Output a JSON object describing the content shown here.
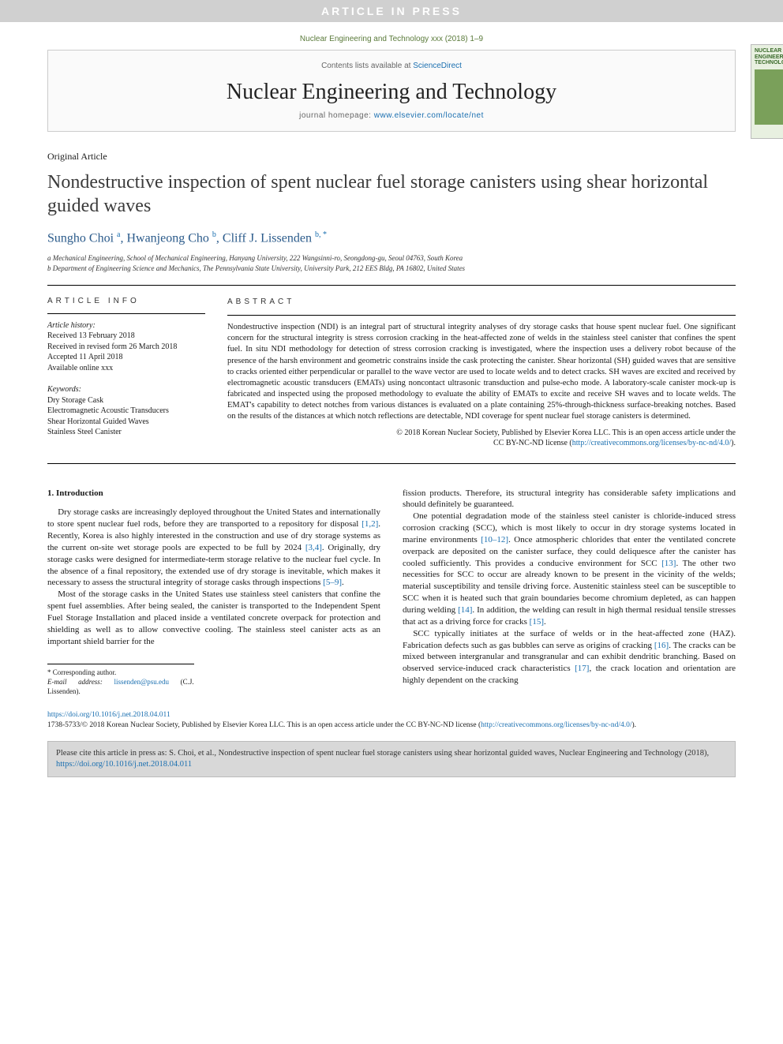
{
  "banner": "ARTICLE IN PRESS",
  "citation_top": "Nuclear Engineering and Technology xxx (2018) 1–9",
  "masthead": {
    "contents_prefix": "Contents lists available at ",
    "contents_link": "ScienceDirect",
    "journal": "Nuclear Engineering and Technology",
    "homepage_prefix": "journal homepage: ",
    "homepage_link": "www.elsevier.com/locate/net",
    "cover_title": "NUCLEAR ENGINEERING AND TECHNOLOGY"
  },
  "article_type": "Original Article",
  "title": "Nondestructive inspection of spent nuclear fuel storage canisters using shear horizontal guided waves",
  "authors_html": "Sungho Choi <sup>a</sup>, Hwanjeong Cho <sup>b</sup>, Cliff J. Lissenden <sup>b, *</sup>",
  "affiliations": {
    "a": "a Mechanical Engineering, School of Mechanical Engineering, Hanyang University, 222 Wangsinni-ro, Seongdong-gu, Seoul 04763, South Korea",
    "b": "b Department of Engineering Science and Mechanics, The Pennsylvania State University, University Park, 212 EES Bldg, PA 16802, United States"
  },
  "info_heading": "ARTICLE INFO",
  "history": {
    "label": "Article history:",
    "received": "Received 13 February 2018",
    "revised": "Received in revised form 26 March 2018",
    "accepted": "Accepted 11 April 2018",
    "online": "Available online xxx"
  },
  "keywords": {
    "label": "Keywords:",
    "items": [
      "Dry Storage Cask",
      "Electromagnetic Acoustic Transducers",
      "Shear Horizontal Guided Waves",
      "Stainless Steel Canister"
    ]
  },
  "abs_heading": "ABSTRACT",
  "abstract": "Nondestructive inspection (NDI) is an integral part of structural integrity analyses of dry storage casks that house spent nuclear fuel. One significant concern for the structural integrity is stress corrosion cracking in the heat-affected zone of welds in the stainless steel canister that confines the spent fuel. In situ NDI methodology for detection of stress corrosion cracking is investigated, where the inspection uses a delivery robot because of the presence of the harsh environment and geometric constrains inside the cask protecting the canister. Shear horizontal (SH) guided waves that are sensitive to cracks oriented either perpendicular or parallel to the wave vector are used to locate welds and to detect cracks. SH waves are excited and received by electromagnetic acoustic transducers (EMATs) using noncontact ultrasonic transduction and pulse-echo mode. A laboratory-scale canister mock-up is fabricated and inspected using the proposed methodology to evaluate the ability of EMATs to excite and receive SH waves and to locate welds. The EMAT's capability to detect notches from various distances is evaluated on a plate containing 25%-through-thickness surface-breaking notches. Based on the results of the distances at which notch reflections are detectable, NDI coverage for spent nuclear fuel storage canisters is determined.",
  "copyright": {
    "line1": "© 2018 Korean Nuclear Society, Published by Elsevier Korea LLC. This is an open access article under the",
    "line2_prefix": "CC BY-NC-ND license (",
    "line2_link": "http://creativecommons.org/licenses/by-nc-nd/4.0/",
    "line2_suffix": ")."
  },
  "section1": {
    "heading": "1. Introduction",
    "p1a": "Dry storage casks are increasingly deployed throughout the United States and internationally to store spent nuclear fuel rods, before they are transported to a repository for disposal ",
    "p1_ref1": "[1,2]",
    "p1b": ". Recently, Korea is also highly interested in the construction and use of dry storage systems as the current on-site wet storage pools are expected to be full by 2024 ",
    "p1_ref2": "[3,4]",
    "p1c": ". Originally, dry storage casks were designed for intermediate-term storage relative to the nuclear fuel cycle. In the absence of a final repository, the extended use of dry storage is inevitable, which makes it necessary to assess the structural integrity of storage casks through inspections ",
    "p1_ref3": "[5–9]",
    "p1d": ".",
    "p2": "Most of the storage casks in the United States use stainless steel canisters that confine the spent fuel assemblies. After being sealed, the canister is transported to the Independent Spent Fuel Storage Installation and placed inside a ventilated concrete overpack for protection and shielding as well as to allow convective cooling. The stainless steel canister acts as an important shield barrier for the",
    "p3": "fission products. Therefore, its structural integrity has considerable safety implications and should definitely be guaranteed.",
    "p4a": "One potential degradation mode of the stainless steel canister is chloride-induced stress corrosion cracking (SCC), which is most likely to occur in dry storage systems located in marine environments ",
    "p4_ref1": "[10–12]",
    "p4b": ". Once atmospheric chlorides that enter the ventilated concrete overpack are deposited on the canister surface, they could deliquesce after the canister has cooled sufficiently. This provides a conducive environment for SCC ",
    "p4_ref2": "[13]",
    "p4c": ". The other two necessities for SCC to occur are already known to be present in the vicinity of the welds; material susceptibility and tensile driving force. Austenitic stainless steel can be susceptible to SCC when it is heated such that grain boundaries become chromium depleted, as can happen during welding ",
    "p4_ref3": "[14]",
    "p4d": ". In addition, the welding can result in high thermal residual tensile stresses that act as a driving force for cracks ",
    "p4_ref4": "[15]",
    "p4e": ".",
    "p5a": "SCC typically initiates at the surface of welds or in the heat-affected zone (HAZ). Fabrication defects such as gas bubbles can serve as origins of cracking ",
    "p5_ref1": "[16]",
    "p5b": ". The cracks can be mixed between intergranular and transgranular and can exhibit dendritic branching. Based on observed service-induced crack characteristics ",
    "p5_ref2": "[17]",
    "p5c": ", the crack location and orientation are highly dependent on the cracking"
  },
  "corresponding": {
    "star": "* Corresponding author.",
    "email_label": "E-mail address: ",
    "email": "lissenden@psu.edu",
    "email_suffix": " (C.J. Lissenden)."
  },
  "doi": {
    "link": "https://doi.org/10.1016/j.net.2018.04.011",
    "issn_line_a": "1738-5733/© 2018 Korean Nuclear Society, Published by Elsevier Korea LLC. This is an open access article under the CC BY-NC-ND license (",
    "issn_link": "http://creativecommons.org/licenses/by-nc-nd/4.0/",
    "issn_line_b": ")."
  },
  "cite_box": {
    "text_a": "Please cite this article in press as: S. Choi, et al., Nondestructive inspection of spent nuclear fuel storage canisters using shear horizontal guided waves, Nuclear Engineering and Technology (2018), ",
    "link": "https://doi.org/10.1016/j.net.2018.04.011"
  },
  "colors": {
    "link": "#1a6fb0",
    "author": "#2a5a8a",
    "banner_bg": "#d0d0d0",
    "citebox_bg": "#d8d8d8"
  }
}
